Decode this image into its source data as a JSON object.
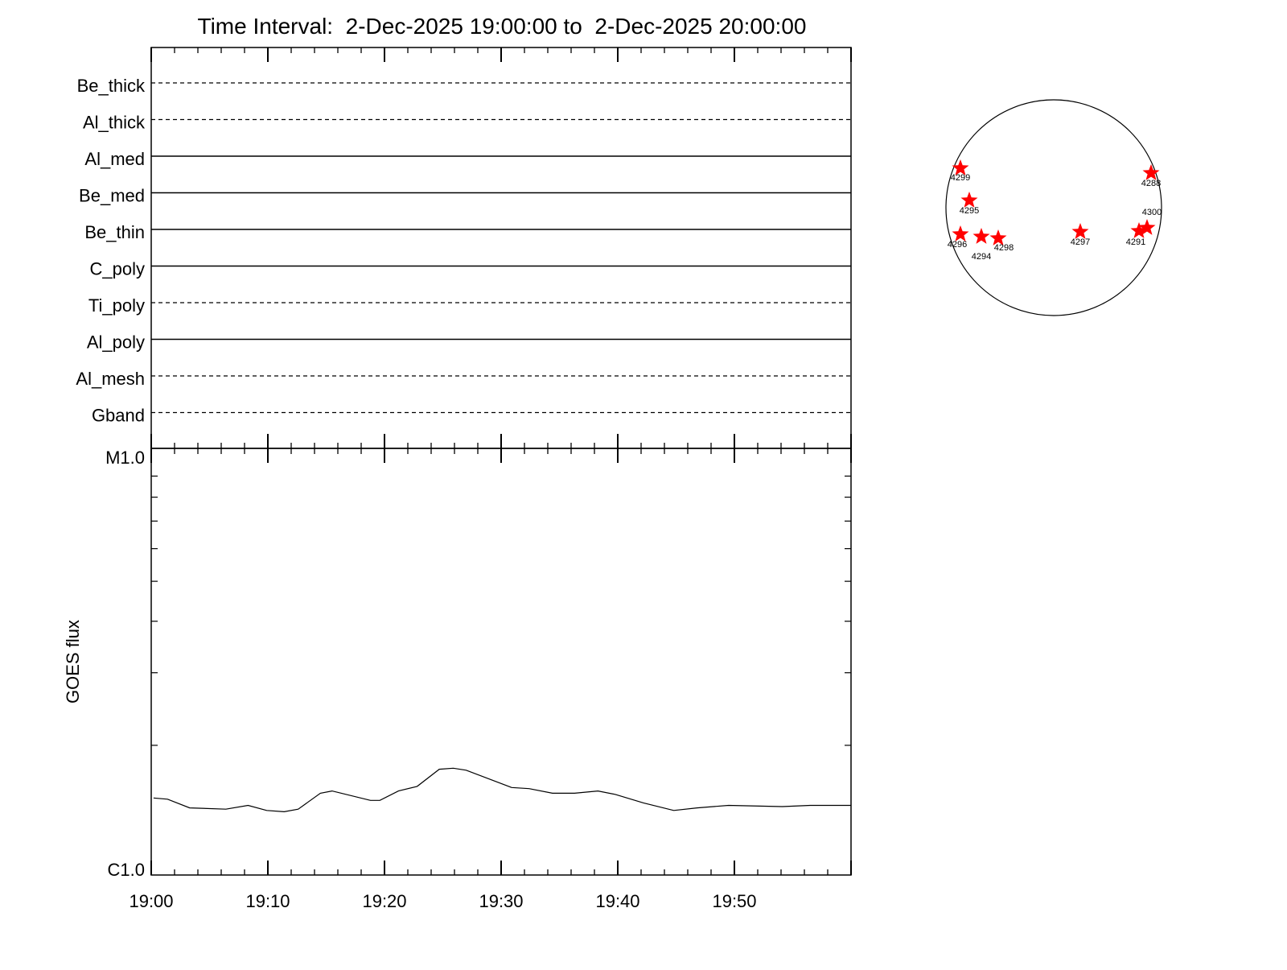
{
  "chart_data": [
    {
      "type": "table",
      "title": "Time Interval:  2-Dec-2025 19:00:00 to  2-Dec-2025 20:00:00",
      "channels": [
        {
          "name": "Be_thick",
          "style": "dashed"
        },
        {
          "name": "Al_thick",
          "style": "dashed"
        },
        {
          "name": "Al_med",
          "style": "solid"
        },
        {
          "name": "Be_med",
          "style": "solid"
        },
        {
          "name": "Be_thin",
          "style": "solid"
        },
        {
          "name": "C_poly",
          "style": "solid"
        },
        {
          "name": "Ti_poly",
          "style": "dashed"
        },
        {
          "name": "Al_poly",
          "style": "solid"
        },
        {
          "name": "Al_mesh",
          "style": "dashed"
        },
        {
          "name": "Gband",
          "style": "dashed"
        }
      ]
    },
    {
      "type": "line",
      "ylabel": "GOES flux",
      "xlabel": "",
      "yscale": "log",
      "ylim": [
        1e-06,
        1e-05
      ],
      "ytick_labels": [
        {
          "value": 1e-05,
          "label": "M1.0"
        },
        {
          "value": 1e-06,
          "label": "C1.0"
        }
      ],
      "xlim_minutes": [
        0,
        60
      ],
      "xtick_labels": [
        "19:00",
        "19:10",
        "19:20",
        "19:30",
        "19:40",
        "19:50"
      ],
      "series": [
        {
          "color": "#000000",
          "x_minutes": [
            0.2,
            1.4,
            3.3,
            6.4,
            8.3,
            9.9,
            11.4,
            12.6,
            14.5,
            15.5,
            18.8,
            19.6,
            21.2,
            22.8,
            24.7,
            25.9,
            27.0,
            30.9,
            32.4,
            34.4,
            36.3,
            38.3,
            39.8,
            42.2,
            44.8,
            46.8,
            49.5,
            54.1,
            56.5,
            60
          ],
          "y": [
            1.49e-06,
            1.48e-06,
            1.41e-06,
            1.4e-06,
            1.43e-06,
            1.39e-06,
            1.38e-06,
            1.4e-06,
            1.53e-06,
            1.55e-06,
            1.47e-06,
            1.47e-06,
            1.55e-06,
            1.59e-06,
            1.75e-06,
            1.76e-06,
            1.74e-06,
            1.58e-06,
            1.57e-06,
            1.53e-06,
            1.53e-06,
            1.55e-06,
            1.52e-06,
            1.45e-06,
            1.39e-06,
            1.41e-06,
            1.43e-06,
            1.42e-06,
            1.43e-06,
            1.43e-06
          ]
        }
      ]
    },
    {
      "type": "scatter",
      "marker_color": "#ff0000",
      "regions": [
        "4299",
        "4295",
        "4296",
        "4294",
        "4298",
        "4297",
        "4291",
        "4300",
        "4288"
      ]
    }
  ]
}
